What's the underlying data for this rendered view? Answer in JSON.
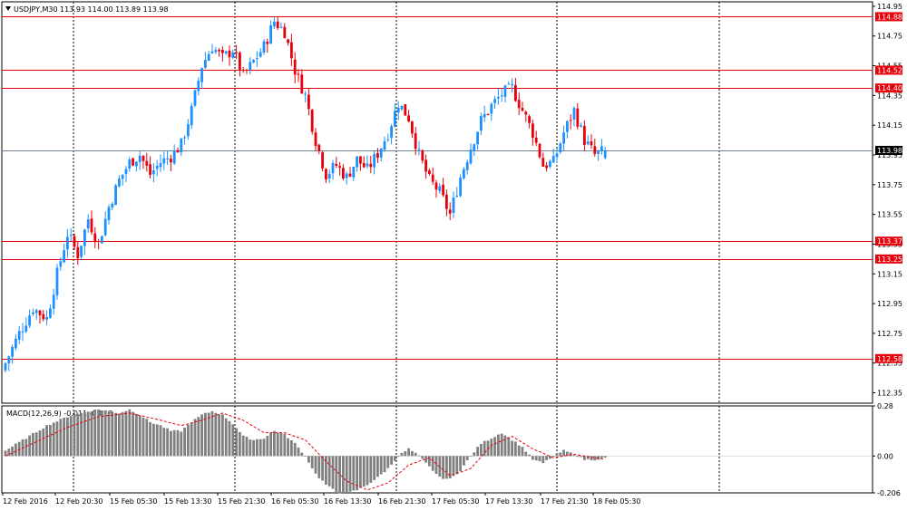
{
  "header": {
    "symbol_label": "USDJPY,M30",
    "ohlc_text": "113.93 114.00 113.89 113.98",
    "macd_label": "MACD(12,26,9) -0.011 -0.018"
  },
  "colors": {
    "bull": "#1e90ff",
    "bear": "#e8000b",
    "level_line": "#e8000b",
    "price_line": "#708090",
    "histogram": "#808080",
    "signal": "#e8000b",
    "grid_vline": "#000000",
    "current_tag_bg": "#000000",
    "level_tag_bg": "#e8000b"
  },
  "chart_data": [
    {
      "type": "candlestick",
      "symbol": "USDJPY",
      "timeframe": "M30",
      "ylim": [
        112.28,
        114.98
      ],
      "y_ticks": [
        "114.95",
        "114.75",
        "114.55",
        "114.35",
        "114.15",
        "113.95",
        "113.75",
        "113.55",
        "113.35",
        "113.15",
        "112.95",
        "112.75",
        "112.55",
        "112.35"
      ],
      "x_ticks": [
        "12 Feb 2016",
        "12 Feb 20:30",
        "15 Feb 05:30",
        "15 Feb 13:30",
        "15 Feb 21:30",
        "16 Feb 05:30",
        "16 Feb 13:30",
        "16 Feb 21:30",
        "17 Feb 05:30",
        "17 Feb 13:30",
        "17 Feb 21:30",
        "18 Feb 05:30"
      ],
      "levels": [
        "114.88",
        "114.52",
        "114.40",
        "113.37",
        "113.25",
        "112.58"
      ],
      "current_price": "113.98",
      "last_bar": {
        "open": 113.93,
        "high": 114.0,
        "low": 113.89,
        "close": 113.98
      },
      "close_path": [
        [
          0,
          112.55
        ],
        [
          4,
          112.75
        ],
        [
          8,
          112.92
        ],
        [
          12,
          112.85
        ],
        [
          15,
          113.15
        ],
        [
          18,
          113.42
        ],
        [
          21,
          113.28
        ],
        [
          24,
          113.52
        ],
        [
          27,
          113.35
        ],
        [
          30,
          113.6
        ],
        [
          33,
          113.78
        ],
        [
          36,
          113.9
        ],
        [
          39,
          113.95
        ],
        [
          42,
          113.82
        ],
        [
          45,
          113.9
        ],
        [
          48,
          113.94
        ],
        [
          51,
          114.02
        ],
        [
          54,
          114.25
        ],
        [
          57,
          114.55
        ],
        [
          60,
          114.68
        ],
        [
          63,
          114.6
        ],
        [
          66,
          114.66
        ],
        [
          69,
          114.48
        ],
        [
          72,
          114.58
        ],
        [
          75,
          114.68
        ],
        [
          78,
          114.85
        ],
        [
          81,
          114.78
        ],
        [
          84,
          114.52
        ],
        [
          87,
          114.35
        ],
        [
          90,
          114.05
        ],
        [
          93,
          113.82
        ],
        [
          96,
          113.88
        ],
        [
          99,
          113.8
        ],
        [
          102,
          113.92
        ],
        [
          105,
          113.85
        ],
        [
          108,
          113.96
        ],
        [
          111,
          114.1
        ],
        [
          114,
          114.3
        ],
        [
          117,
          114.2
        ],
        [
          120,
          113.95
        ],
        [
          123,
          113.78
        ],
        [
          126,
          113.7
        ],
        [
          129,
          113.55
        ],
        [
          132,
          113.8
        ],
        [
          135,
          114.0
        ],
        [
          138,
          114.18
        ],
        [
          141,
          114.28
        ],
        [
          144,
          114.36
        ],
        [
          147,
          114.4
        ],
        [
          150,
          114.25
        ],
        [
          153,
          114.1
        ],
        [
          156,
          113.88
        ],
        [
          159,
          113.9
        ],
        [
          162,
          114.1
        ],
        [
          165,
          114.25
        ],
        [
          168,
          114.05
        ],
        [
          171,
          113.95
        ],
        [
          174,
          113.98
        ]
      ]
    },
    {
      "type": "histogram+line",
      "name": "MACD(12,26,9)",
      "main_value": "-0.011",
      "signal_value": "-0.018",
      "ylim": [
        -0.206,
        0.28
      ],
      "y_ticks": [
        "0.28",
        "0.00",
        "-0.206"
      ],
      "histogram_path": [
        [
          0,
          0.03
        ],
        [
          6,
          0.1
        ],
        [
          12,
          0.17
        ],
        [
          18,
          0.22
        ],
        [
          24,
          0.25
        ],
        [
          27,
          0.26
        ],
        [
          30,
          0.25
        ],
        [
          33,
          0.24
        ],
        [
          36,
          0.26
        ],
        [
          39,
          0.23
        ],
        [
          42,
          0.19
        ],
        [
          45,
          0.17
        ],
        [
          48,
          0.14
        ],
        [
          51,
          0.14
        ],
        [
          54,
          0.19
        ],
        [
          57,
          0.23
        ],
        [
          60,
          0.25
        ],
        [
          63,
          0.23
        ],
        [
          66,
          0.18
        ],
        [
          69,
          0.11
        ],
        [
          72,
          0.09
        ],
        [
          75,
          0.1
        ],
        [
          78,
          0.14
        ],
        [
          81,
          0.12
        ],
        [
          84,
          0.07
        ],
        [
          87,
          0.0
        ],
        [
          90,
          -0.1
        ],
        [
          93,
          -0.16
        ],
        [
          96,
          -0.2
        ],
        [
          99,
          -0.21
        ],
        [
          102,
          -0.19
        ],
        [
          105,
          -0.16
        ],
        [
          108,
          -0.12
        ],
        [
          111,
          -0.07
        ],
        [
          114,
          0.0
        ],
        [
          117,
          0.04
        ],
        [
          120,
          0.0
        ],
        [
          123,
          -0.06
        ],
        [
          126,
          -0.12
        ],
        [
          129,
          -0.13
        ],
        [
          132,
          -0.08
        ],
        [
          135,
          0.0
        ],
        [
          138,
          0.07
        ],
        [
          141,
          0.1
        ],
        [
          144,
          0.13
        ],
        [
          147,
          0.09
        ],
        [
          150,
          0.05
        ],
        [
          153,
          -0.02
        ],
        [
          156,
          -0.04
        ],
        [
          159,
          0.0
        ],
        [
          162,
          0.03
        ],
        [
          165,
          0.01
        ],
        [
          168,
          -0.02
        ],
        [
          171,
          -0.02
        ],
        [
          174,
          -0.011
        ]
      ],
      "signal_path": [
        [
          0,
          0.0
        ],
        [
          9,
          0.08
        ],
        [
          18,
          0.16
        ],
        [
          27,
          0.22
        ],
        [
          36,
          0.24
        ],
        [
          45,
          0.2
        ],
        [
          51,
          0.17
        ],
        [
          57,
          0.2
        ],
        [
          63,
          0.24
        ],
        [
          69,
          0.2
        ],
        [
          75,
          0.13
        ],
        [
          81,
          0.13
        ],
        [
          87,
          0.09
        ],
        [
          93,
          -0.03
        ],
        [
          99,
          -0.14
        ],
        [
          105,
          -0.19
        ],
        [
          111,
          -0.15
        ],
        [
          117,
          -0.05
        ],
        [
          123,
          -0.01
        ],
        [
          129,
          -0.11
        ],
        [
          135,
          -0.07
        ],
        [
          141,
          0.06
        ],
        [
          147,
          0.11
        ],
        [
          153,
          0.04
        ],
        [
          159,
          -0.01
        ],
        [
          165,
          0.01
        ],
        [
          171,
          -0.01
        ],
        [
          174,
          -0.018
        ]
      ]
    }
  ]
}
